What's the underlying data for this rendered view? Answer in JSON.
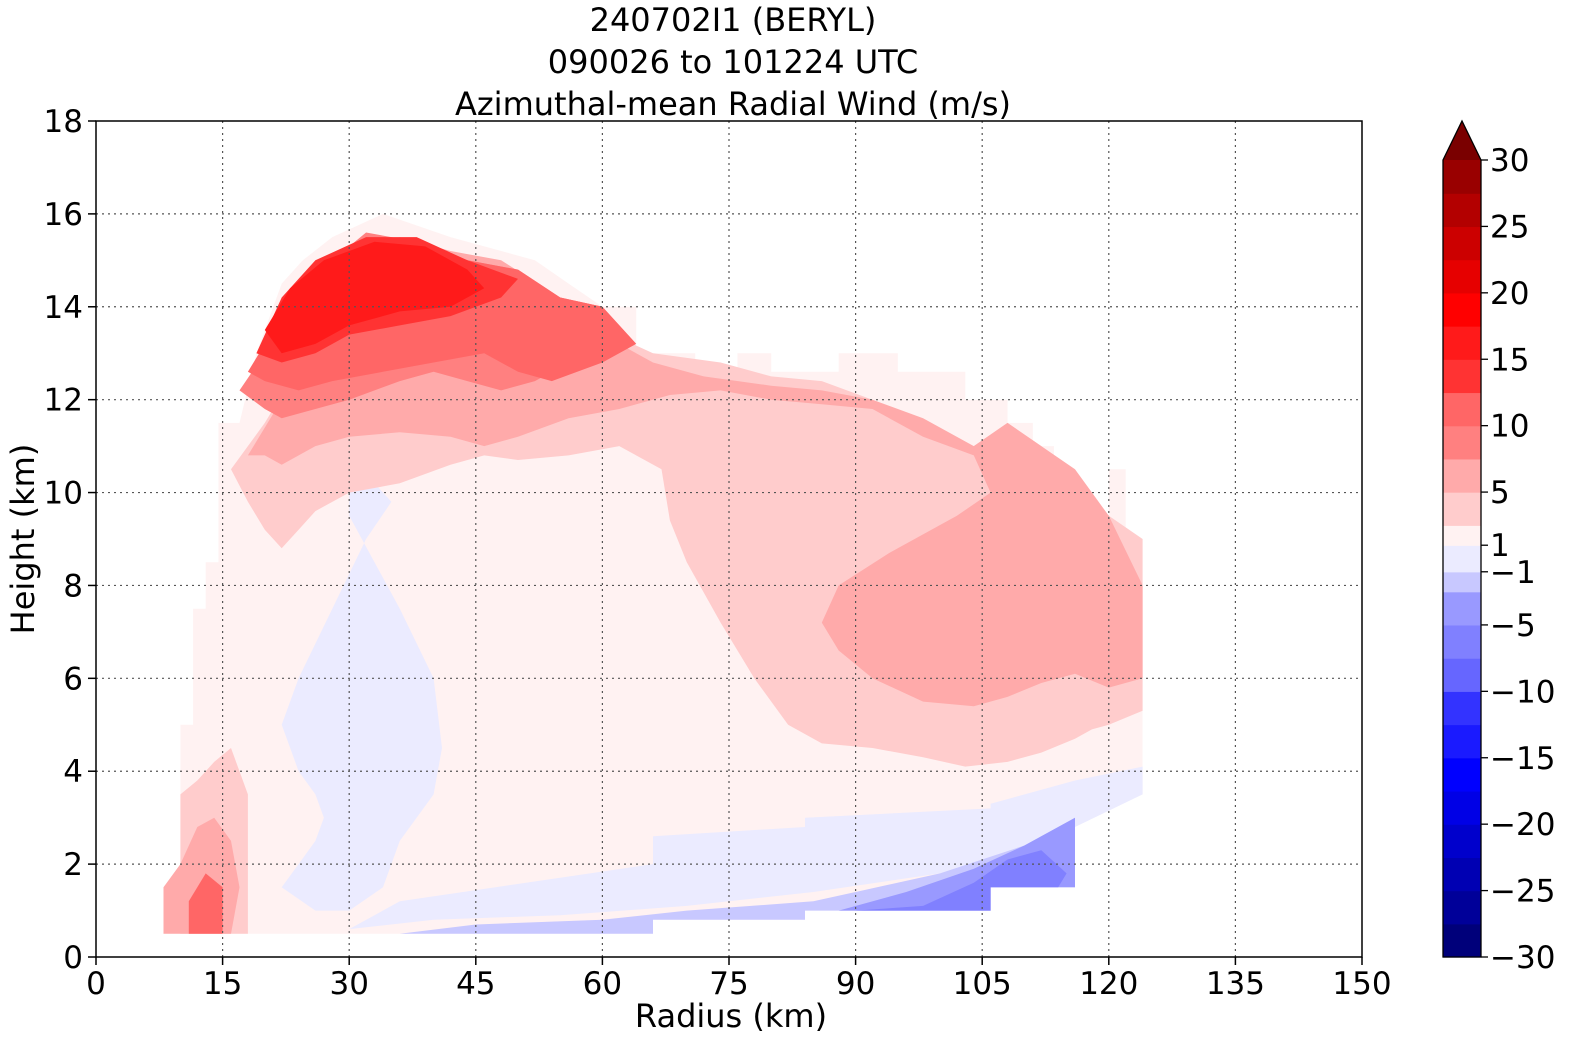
{
  "title": {
    "line1": "240702I1 (BERYL)",
    "line2": "090026 to 101224 UTC",
    "line3": "Azimuthal-mean Radial Wind (m/s)"
  },
  "chart_data": {
    "type": "heatmap",
    "xlabel": "Radius (km)",
    "ylabel": "Height (km)",
    "xlim": [
      0,
      150
    ],
    "ylim": [
      0,
      18
    ],
    "xticks": [
      "0",
      "15",
      "30",
      "45",
      "60",
      "75",
      "90",
      "105",
      "120",
      "135",
      "150"
    ],
    "yticks": [
      "0",
      "2",
      "4",
      "6",
      "8",
      "10",
      "12",
      "14",
      "16",
      "18"
    ],
    "grid": true,
    "colorbar": {
      "range": [
        -30,
        30
      ],
      "extend": "max",
      "tick_labels": [
        "30",
        "25",
        "20",
        "15",
        "10",
        "5",
        "1",
        "−1",
        "−5",
        "−10",
        "−15",
        "−20",
        "−25",
        "−30"
      ],
      "tick_values": [
        30,
        25,
        20,
        15,
        10,
        5,
        1,
        -1,
        -5,
        -10,
        -15,
        -20,
        -25,
        -30
      ],
      "levels": [
        -30,
        -27.5,
        -25,
        -22.5,
        -20,
        -17.5,
        -15,
        -12.5,
        -10,
        -7.5,
        -5,
        -2.5,
        -1,
        1,
        2.5,
        5,
        7.5,
        10,
        12.5,
        15,
        17.5,
        20,
        22.5,
        25,
        27.5,
        30
      ],
      "colors": [
        "#00007a",
        "#000099",
        "#0000b3",
        "#0000cc",
        "#0000e6",
        "#0000ff",
        "#1a1aff",
        "#3333ff",
        "#6666ff",
        "#8080ff",
        "#9999ff",
        "#c8c8ff",
        "#ebebff",
        "#fff2f2",
        "#ffcccc",
        "#ffaaaa",
        "#ff8080",
        "#ff6666",
        "#ff3333",
        "#ff1a1a",
        "#ff0000",
        "#e60000",
        "#cc0000",
        "#b30000",
        "#990000",
        "#7a0000"
      ]
    },
    "contour_regions": [
      {
        "level": 1,
        "color": "#fff2f2",
        "r": [
          14.5,
          17,
          19,
          22,
          24.5,
          28,
          34,
          42,
          52,
          56,
          60,
          64,
          64,
          71,
          71,
          76,
          76,
          80,
          80,
          88,
          88,
          95,
          95,
          103,
          103,
          108,
          108,
          111,
          111,
          113.5,
          113.5,
          116,
          116,
          120,
          120,
          122,
          122,
          124,
          124,
          116,
          116,
          106,
          106,
          84,
          84,
          66,
          66,
          36,
          30,
          18,
          16,
          10,
          10,
          8,
          8,
          10,
          10,
          11.5,
          11.5,
          13,
          13,
          14.5
        ],
        "z": [
          11.5,
          11.5,
          13,
          14.5,
          15,
          15.5,
          16,
          15.5,
          15,
          14.5,
          14,
          14,
          13,
          13,
          12.6,
          12.6,
          13,
          13,
          12.6,
          12.6,
          13,
          13,
          12.6,
          12.6,
          12,
          12,
          11.5,
          11.5,
          11,
          11,
          10.5,
          10.5,
          9.5,
          9.5,
          10.5,
          10.5,
          9,
          9,
          3.5,
          3.5,
          1.5,
          1.5,
          1,
          1,
          0.8,
          0.8,
          0.5,
          0.5,
          0.5,
          0.5,
          0.5,
          0.5,
          0.5,
          0.5,
          1.5,
          1.5,
          5,
          5,
          7.5,
          7.5,
          8.5,
          8.5,
          11.5
        ]
      },
      {
        "level": -1,
        "color": "#ebebff",
        "r": [
          22,
          26,
          30,
          34,
          36,
          40,
          41,
          40,
          36,
          33,
          30,
          30,
          33,
          35,
          32,
          28,
          24,
          22,
          24,
          26,
          27,
          26,
          24,
          22,
          22
        ],
        "z": [
          1.5,
          1.0,
          1.0,
          1.5,
          2.5,
          3.5,
          4.5,
          6,
          7.5,
          8.5,
          9.5,
          10,
          10.2,
          9.8,
          9,
          7.5,
          6,
          5,
          4,
          3.5,
          3,
          2.5,
          2,
          1.5,
          1.5
        ]
      },
      {
        "level": -1,
        "color": "#ebebff",
        "r": [
          30,
          40,
          55,
          70,
          85,
          100,
          110,
          116,
          124,
          124,
          116,
          106,
          106,
          84,
          84,
          66,
          66,
          36,
          30
        ],
        "z": [
          0.6,
          0.8,
          0.9,
          1.1,
          1.4,
          1.8,
          2.2,
          2.8,
          3.5,
          4.1,
          3.8,
          3.3,
          3.2,
          3.0,
          2.8,
          2.6,
          2.0,
          1.2,
          0.6
        ]
      },
      {
        "level": -5,
        "color": "#c8c8ff",
        "r": [
          70,
          85,
          100,
          110,
          116,
          116,
          106,
          106,
          84,
          84,
          66,
          66,
          55,
          40,
          36,
          45,
          60,
          70
        ],
        "z": [
          1.0,
          1.2,
          1.8,
          2.4,
          3.0,
          1.5,
          1.5,
          1,
          1,
          0.8,
          0.8,
          0.5,
          0.5,
          0.5,
          0.5,
          0.7,
          0.8,
          1.0
        ]
      },
      {
        "level": -7.5,
        "color": "#9999ff",
        "r": [
          88,
          96,
          104,
          110,
          116,
          116,
          106,
          106,
          88
        ],
        "z": [
          1.0,
          1.4,
          1.9,
          2.4,
          3.0,
          1.5,
          1.5,
          1.0,
          1.0
        ]
      },
      {
        "level": -10,
        "color": "#8080ff",
        "r": [
          90,
          98,
          104,
          108,
          112,
          115,
          114,
          106,
          106,
          90
        ],
        "z": [
          1.0,
          1.1,
          1.6,
          2.1,
          2.3,
          1.8,
          1.5,
          1.5,
          1.0,
          1.0
        ]
      },
      {
        "level": 2.5,
        "color": "#ffcccc",
        "r": [
          16,
          20,
          25,
          30,
          36,
          42,
          48,
          55,
          60,
          66,
          74,
          80,
          86,
          92,
          96,
          100,
          104,
          108,
          112,
          116,
          120,
          124,
          124,
          120,
          118,
          116,
          112,
          108,
          103,
          98,
          92,
          86,
          82,
          78,
          74,
          70,
          68,
          67,
          62,
          56,
          50,
          46,
          42,
          36,
          30,
          26,
          24,
          22,
          20,
          18,
          16
        ],
        "z": [
          10.5,
          11.5,
          13,
          14.5,
          15.5,
          15,
          14.8,
          14,
          13.5,
          13,
          12.8,
          12.5,
          12.4,
          12.0,
          11.6,
          11.2,
          11.0,
          11.5,
          11.0,
          10.0,
          9.5,
          9.0,
          5.3,
          5.0,
          4.9,
          4.7,
          4.4,
          4.2,
          4.1,
          4.3,
          4.5,
          4.6,
          5.0,
          6.0,
          7.2,
          8.5,
          9.4,
          10.5,
          11.0,
          10.8,
          10.7,
          10.8,
          10.6,
          10.2,
          10.0,
          9.6,
          9.2,
          8.8,
          9.2,
          9.8,
          10.5
        ]
      },
      {
        "level": 5,
        "color": "#ffaaaa",
        "r": [
          18,
          22,
          26,
          30,
          36,
          42,
          48,
          55,
          60,
          62,
          66,
          72,
          80,
          86,
          92,
          98,
          104,
          108,
          112,
          116,
          120,
          124,
          124,
          120,
          116,
          112,
          108,
          104,
          98,
          92,
          88,
          86,
          88,
          94,
          102,
          106,
          104,
          98,
          92,
          86,
          80,
          74,
          68,
          62,
          56,
          50,
          46,
          42,
          36,
          30,
          26,
          22,
          20,
          18
        ],
        "z": [
          10.8,
          12,
          13.5,
          14.8,
          15.5,
          15.2,
          15,
          14.2,
          14,
          13.2,
          12.8,
          12.5,
          12.3,
          12.2,
          12.0,
          11.6,
          11.0,
          11.5,
          11.0,
          10.5,
          9.5,
          8.0,
          6.0,
          5.8,
          6.1,
          5.9,
          5.6,
          5.4,
          5.5,
          6.0,
          6.6,
          7.2,
          8.0,
          8.7,
          9.5,
          10.0,
          10.8,
          11.2,
          11.8,
          11.9,
          12.0,
          12.2,
          12.1,
          11.8,
          11.6,
          11.2,
          11.0,
          11.2,
          11.3,
          11.2,
          11.0,
          10.6,
          10.8,
          10.8
        ]
      },
      {
        "level": 7.5,
        "color": "#ff8080",
        "r": [
          17,
          20,
          24,
          28,
          32,
          38,
          44,
          50,
          55,
          60,
          64,
          58,
          52,
          48,
          44,
          40,
          36,
          30,
          26,
          22,
          20,
          17
        ],
        "z": [
          12.2,
          13,
          14.2,
          15,
          15.6,
          15.4,
          15,
          14.8,
          14.2,
          14,
          13.2,
          13.0,
          12.4,
          12.2,
          12.4,
          12.6,
          12.4,
          12.0,
          11.8,
          11.6,
          11.8,
          12.2
        ]
      },
      {
        "level": 10,
        "color": "#ff6666",
        "r": [
          18,
          22,
          26,
          32,
          38,
          44,
          50,
          55,
          60,
          64,
          60,
          54,
          50,
          46,
          40,
          34,
          28,
          24,
          20,
          18
        ],
        "z": [
          12.6,
          13.8,
          14.6,
          15.4,
          15.4,
          15.0,
          14.8,
          14.2,
          14.0,
          13.2,
          12.8,
          12.4,
          12.6,
          13.0,
          12.8,
          12.6,
          12.4,
          12.2,
          12.4,
          12.6
        ]
      },
      {
        "level": 12.5,
        "color": "#ff3333",
        "r": [
          19,
          22,
          26,
          32,
          38,
          44,
          50,
          48,
          42,
          36,
          30,
          26,
          22,
          19
        ],
        "z": [
          13.0,
          14.2,
          15.0,
          15.5,
          15.5,
          15.0,
          14.6,
          14.2,
          13.8,
          13.6,
          13.4,
          13.0,
          12.8,
          13.0
        ]
      },
      {
        "level": 15,
        "color": "#ff1a1a",
        "r": [
          20,
          23,
          27,
          33,
          39,
          44,
          46,
          42,
          36,
          30,
          26,
          22,
          20
        ],
        "z": [
          13.5,
          14.4,
          15.0,
          15.4,
          15.3,
          14.8,
          14.4,
          14.0,
          13.9,
          13.6,
          13.2,
          13.0,
          13.5
        ]
      },
      {
        "level": 2.5,
        "color": "#ffcccc",
        "r": [
          10,
          12,
          14,
          16,
          18,
          18,
          16,
          14,
          12,
          10
        ],
        "z": [
          0.5,
          0.5,
          0.5,
          0.5,
          0.5,
          3.5,
          4.5,
          4.2,
          3.8,
          3.5
        ]
      },
      {
        "level": 5,
        "color": "#ffaaaa",
        "r": [
          8,
          10,
          12,
          14,
          16,
          17,
          16,
          14,
          12,
          10,
          8
        ],
        "z": [
          0.5,
          0.5,
          0.5,
          0.5,
          0.5,
          1.5,
          2.5,
          3.0,
          2.8,
          2.0,
          1.5
        ]
      },
      {
        "level": 10,
        "color": "#ff6666",
        "r": [
          11,
          13,
          15,
          15,
          13,
          11
        ],
        "z": [
          0.5,
          0.5,
          0.5,
          1.5,
          1.8,
          1.2
        ]
      }
    ]
  }
}
